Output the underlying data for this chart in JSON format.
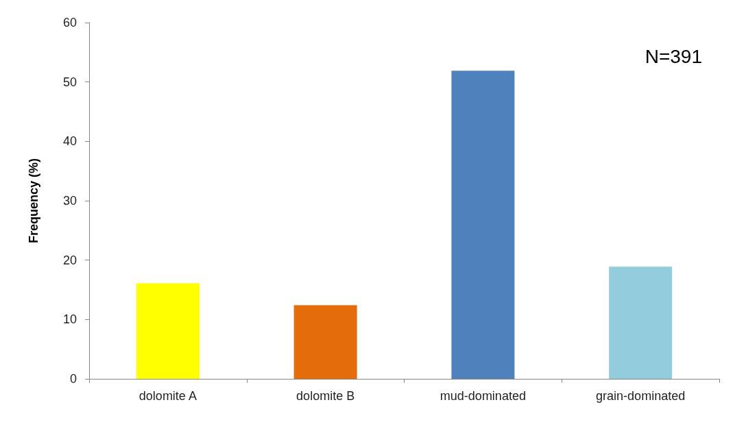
{
  "chart_data": {
    "type": "bar",
    "ylabel": "Frequency (%)",
    "categories": [
      "dolomite A",
      "dolomite B",
      "mud-dominated",
      "grain-dominated"
    ],
    "values": [
      16.1,
      12.4,
      51.9,
      18.9
    ],
    "colors": [
      "#ffff00",
      "#e46c0a",
      "#4f81bd",
      "#93cddd"
    ],
    "ylim": [
      0,
      60
    ],
    "yticks": [
      0,
      10,
      20,
      30,
      40,
      50,
      60
    ],
    "annotations": [
      "N=391"
    ]
  }
}
